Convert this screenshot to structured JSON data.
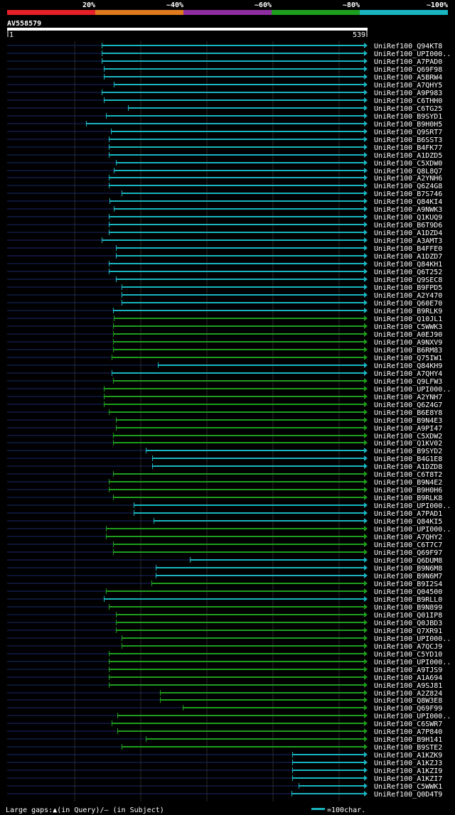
{
  "legend": {
    "pct_labels": [
      "20%",
      "~40%",
      "~60%",
      "~80%",
      "~100%"
    ],
    "colors": [
      "#e8202a",
      "#e07a1e",
      "#8e2ea0",
      "#1e9e1e",
      "#19b5c1"
    ]
  },
  "query": {
    "id": "AV558579",
    "start": "1",
    "end": "539"
  },
  "rows": [
    {
      "label": "UniRef100_Q94KT8",
      "c": "#19b5c1"
    },
    {
      "label": "UniRef100_UPI000..",
      "c": "#19b5c1"
    },
    {
      "label": "UniRef100_A7PAD0",
      "c": "#19b5c1"
    },
    {
      "label": "UniRef100_Q69F98",
      "c": "#19b5c1"
    },
    {
      "label": "UniRef100_A5BRW4",
      "c": "#19b5c1"
    },
    {
      "label": "UniRef100_A7QHY5",
      "c": "#19b5c1"
    },
    {
      "label": "UniRef100_A9P983",
      "c": "#19b5c1"
    },
    {
      "label": "UniRef100_C6THH0",
      "c": "#19b5c1"
    },
    {
      "label": "UniRef100_C6TG25",
      "c": "#19b5c1"
    },
    {
      "label": "UniRef100_B9SYD1",
      "c": "#19b5c1"
    },
    {
      "label": "UniRef100_B9H0H5",
      "c": "#19b5c1"
    },
    {
      "label": "UniRef100_Q9SRT7",
      "c": "#19b5c1"
    },
    {
      "label": "UniRef100_B6SST3",
      "c": "#19b5c1"
    },
    {
      "label": "UniRef100_B4FK77",
      "c": "#19b5c1"
    },
    {
      "label": "UniRef100_A1DZD5",
      "c": "#19b5c1"
    },
    {
      "label": "UniRef100_C5XDW0",
      "c": "#19b5c1"
    },
    {
      "label": "UniRef100_Q8L8Q7",
      "c": "#19b5c1"
    },
    {
      "label": "UniRef100_A2YNH6",
      "c": "#19b5c1"
    },
    {
      "label": "UniRef100_Q6Z4G8",
      "c": "#19b5c1"
    },
    {
      "label": "UniRef100_B7S746",
      "c": "#19b5c1"
    },
    {
      "label": "UniRef100_Q84KI4",
      "c": "#19b5c1"
    },
    {
      "label": "UniRef100_A9NWK3",
      "c": "#19b5c1"
    },
    {
      "label": "UniRef100_Q1KUQ9",
      "c": "#19b5c1"
    },
    {
      "label": "UniRef100_B6T9D6",
      "c": "#19b5c1"
    },
    {
      "label": "UniRef100_A1DZD4",
      "c": "#19b5c1"
    },
    {
      "label": "UniRef100_A3AMT3",
      "c": "#19b5c1"
    },
    {
      "label": "UniRef100_B4FFE0",
      "c": "#19b5c1"
    },
    {
      "label": "UniRef100_A1DZD7",
      "c": "#19b5c1"
    },
    {
      "label": "UniRef100_Q84KH1",
      "c": "#19b5c1"
    },
    {
      "label": "UniRef100_Q6T252",
      "c": "#19b5c1"
    },
    {
      "label": "UniRef100_Q9SEC8",
      "c": "#19b5c1"
    },
    {
      "label": "UniRef100_B9FPD5",
      "c": "#19b5c1"
    },
    {
      "label": "UniRef100_A2Y470",
      "c": "#19b5c1"
    },
    {
      "label": "UniRef100_Q60E70",
      "c": "#19b5c1"
    },
    {
      "label": "UniRef100_B9RLK9",
      "c": "#19b5c1"
    },
    {
      "label": "UniRef100_Q10JL1",
      "c": "#1e9e1e"
    },
    {
      "label": "UniRef100_C5WWK3",
      "c": "#1e9e1e"
    },
    {
      "label": "UniRef100_A0EJ90",
      "c": "#1e9e1e"
    },
    {
      "label": "UniRef100_A9NXV9",
      "c": "#1e9e1e"
    },
    {
      "label": "UniRef100_B6RM83",
      "c": "#1e9e1e"
    },
    {
      "label": "UniRef100_Q75IW1",
      "c": "#1e9e1e"
    },
    {
      "label": "UniRef100_Q84KH9",
      "c": "#19b5c1"
    },
    {
      "label": "UniRef100_A7QHY4",
      "c": "#19b5c1"
    },
    {
      "label": "UniRef100_Q9LFW3",
      "c": "#1e9e1e"
    },
    {
      "label": "UniRef100_UPI000..",
      "c": "#1e9e1e"
    },
    {
      "label": "UniRef100_A2YNH7",
      "c": "#1e9e1e"
    },
    {
      "label": "UniRef100_Q6Z4G7",
      "c": "#1e9e1e"
    },
    {
      "label": "UniRef100_B6E8Y8",
      "c": "#1e9e1e"
    },
    {
      "label": "UniRef100_B9N4E3",
      "c": "#1e9e1e"
    },
    {
      "label": "UniRef100_A9PI47",
      "c": "#1e9e1e"
    },
    {
      "label": "UniRef100_C5XDW2",
      "c": "#1e9e1e"
    },
    {
      "label": "UniRef100_Q1KV02",
      "c": "#1e9e1e"
    },
    {
      "label": "UniRef100_B9SYD2",
      "c": "#19b5c1"
    },
    {
      "label": "UniRef100_B4G1E8",
      "c": "#19b5c1"
    },
    {
      "label": "UniRef100_A1DZD8",
      "c": "#19b5c1"
    },
    {
      "label": "UniRef100_C6T8T2",
      "c": "#1e9e1e"
    },
    {
      "label": "UniRef100_B9N4E2",
      "c": "#1e9e1e"
    },
    {
      "label": "UniRef100_B9H0H6",
      "c": "#1e9e1e"
    },
    {
      "label": "UniRef100_B9RLK8",
      "c": "#1e9e1e"
    },
    {
      "label": "UniRef100_UPI000..",
      "c": "#19b5c1"
    },
    {
      "label": "UniRef100_A7PAD1",
      "c": "#19b5c1"
    },
    {
      "label": "UniRef100_Q84KI5",
      "c": "#19b5c1"
    },
    {
      "label": "UniRef100_UPI000..",
      "c": "#1e9e1e"
    },
    {
      "label": "UniRef100_A7QHY2",
      "c": "#1e9e1e"
    },
    {
      "label": "UniRef100_C6T7C7",
      "c": "#1e9e1e"
    },
    {
      "label": "UniRef100_Q69F97",
      "c": "#1e9e1e"
    },
    {
      "label": "UniRef100_Q6DUM8",
      "c": "#19b5c1"
    },
    {
      "label": "UniRef100_B9N6M8",
      "c": "#19b5c1"
    },
    {
      "label": "UniRef100_B9N6M7",
      "c": "#19b5c1"
    },
    {
      "label": "UniRef100_B9I2S4",
      "c": "#1e9e1e"
    },
    {
      "label": "UniRef100_Q04500",
      "c": "#1e9e1e"
    },
    {
      "label": "UniRef100_B9RLL0",
      "c": "#19b5c1"
    },
    {
      "label": "UniRef100_B9N899",
      "c": "#1e9e1e"
    },
    {
      "label": "UniRef100_Q01IP8",
      "c": "#1e9e1e"
    },
    {
      "label": "UniRef100_Q0JBD3",
      "c": "#1e9e1e"
    },
    {
      "label": "UniRef100_Q7XR91",
      "c": "#1e9e1e"
    },
    {
      "label": "UniRef100_UPI000..",
      "c": "#1e9e1e"
    },
    {
      "label": "UniRef100_A7QCJ9",
      "c": "#1e9e1e"
    },
    {
      "label": "UniRef100_C5YD10",
      "c": "#1e9e1e"
    },
    {
      "label": "UniRef100_UPI000..",
      "c": "#1e9e1e"
    },
    {
      "label": "UniRef100_A9TJS9",
      "c": "#1e9e1e"
    },
    {
      "label": "UniRef100_A1A694",
      "c": "#1e9e1e"
    },
    {
      "label": "UniRef100_A9SJ81",
      "c": "#1e9e1e"
    },
    {
      "label": "UniRef100_A2Z824",
      "c": "#1e9e1e"
    },
    {
      "label": "UniRef100_Q8W3E8",
      "c": "#1e9e1e"
    },
    {
      "label": "UniRef100_Q69F99",
      "c": "#1e9e1e"
    },
    {
      "label": "UniRef100_UPI000..",
      "c": "#1e9e1e"
    },
    {
      "label": "UniRef100_C6SWR7",
      "c": "#1e9e1e"
    },
    {
      "label": "UniRef100_A7P840",
      "c": "#1e9e1e"
    },
    {
      "label": "UniRef100_B9H141",
      "c": "#1e9e1e"
    },
    {
      "label": "UniRef100_B9STE2",
      "c": "#1e9e1e"
    },
    {
      "label": "UniRef100_A1KZK9",
      "c": "#19b5c1"
    },
    {
      "label": "UniRef100_A1KZJ3",
      "c": "#19b5c1"
    },
    {
      "label": "UniRef100_A1KZI9",
      "c": "#19b5c1"
    },
    {
      "label": "UniRef100_A1KZI7",
      "c": "#19b5c1"
    },
    {
      "label": "UniRef100_C5WWK1",
      "c": "#19b5c1"
    },
    {
      "label": "UniRef100_Q0D4T9",
      "c": "#19b5c1"
    }
  ],
  "footer": {
    "gaps_text": "Large gaps:▲(in Query)/– (in Subject)",
    "scale_text": "=100char."
  }
}
